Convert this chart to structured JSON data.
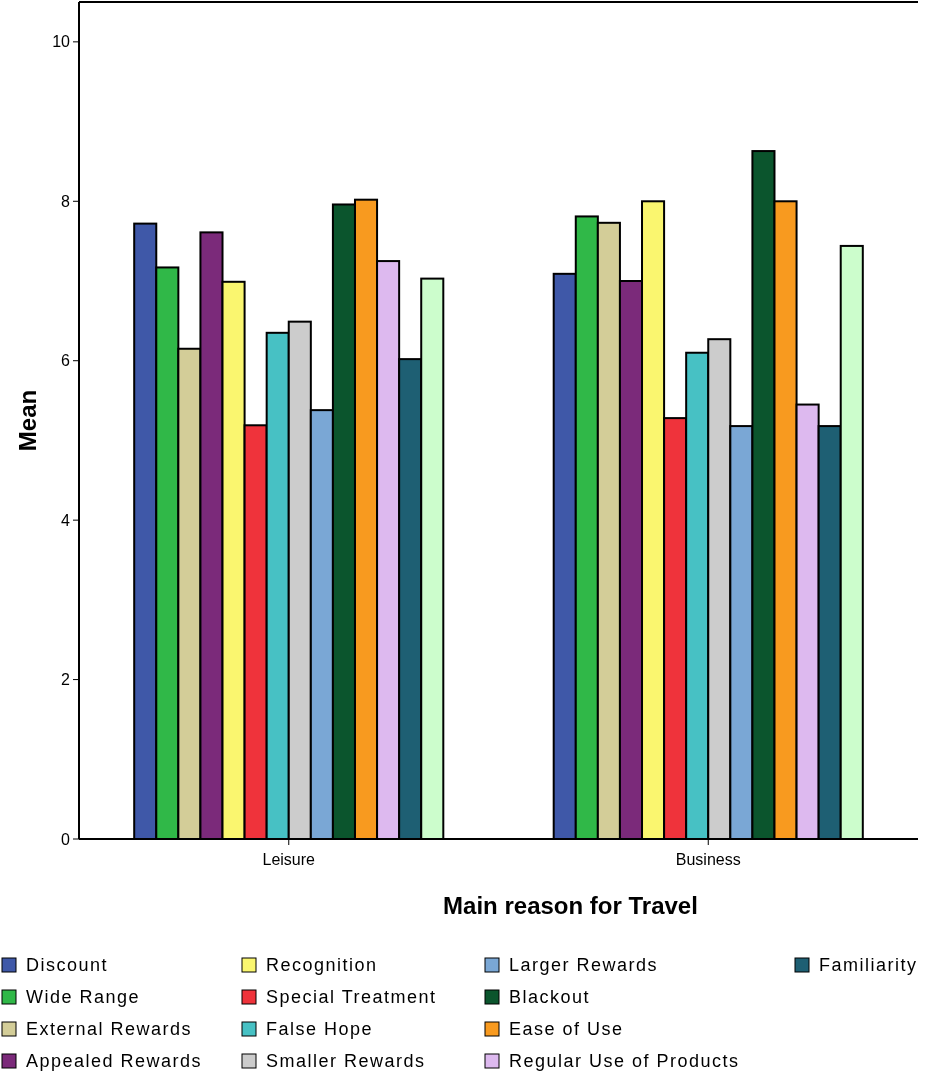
{
  "chart_data": {
    "type": "bar",
    "xlabel": "Main reason for Travel",
    "ylabel": "Mean",
    "categories": [
      "Leisure",
      "Business"
    ],
    "ylim": [
      0,
      10.5
    ],
    "yticks": [
      0,
      2,
      4,
      6,
      8,
      10
    ],
    "grid": false,
    "legend": "bottom",
    "series": [
      {
        "name": "Discount",
        "color": "#3f58a8",
        "values": [
          7.72,
          7.09
        ]
      },
      {
        "name": "Wide Range",
        "color": "#30b848",
        "values": [
          7.17,
          7.81
        ]
      },
      {
        "name": "External Rewards",
        "color": "#d3cd98",
        "values": [
          6.15,
          7.73
        ]
      },
      {
        "name": "Appealed Rewards",
        "color": "#7b2a7a",
        "values": [
          7.61,
          7.0
        ]
      },
      {
        "name": "Recognition",
        "color": "#faf66f",
        "values": [
          6.99,
          8.0
        ]
      },
      {
        "name": "Special Treatment",
        "color": "#ef333b",
        "values": [
          5.19,
          5.28
        ]
      },
      {
        "name": "False Hope",
        "color": "#47c1c4",
        "values": [
          6.35,
          6.1
        ]
      },
      {
        "name": "Smaller Rewards",
        "color": "#cccccc",
        "values": [
          6.49,
          6.27
        ]
      },
      {
        "name": "Larger Rewards",
        "color": "#7aa7d5",
        "values": [
          5.38,
          5.18
        ]
      },
      {
        "name": "Blackout",
        "color": "#0b552d",
        "values": [
          7.96,
          8.63
        ]
      },
      {
        "name": "Ease of Use",
        "color": "#f89a1f",
        "values": [
          8.02,
          8.0
        ]
      },
      {
        "name": "Regular Use of Products",
        "color": "#ddb9ef",
        "values": [
          7.25,
          5.45
        ]
      },
      {
        "name": "Familiarity",
        "color": "#1e5f73",
        "values": [
          6.02,
          5.18
        ]
      },
      {
        "color": "#ccfdcc",
        "values": [
          7.03,
          7.44
        ]
      }
    ]
  }
}
